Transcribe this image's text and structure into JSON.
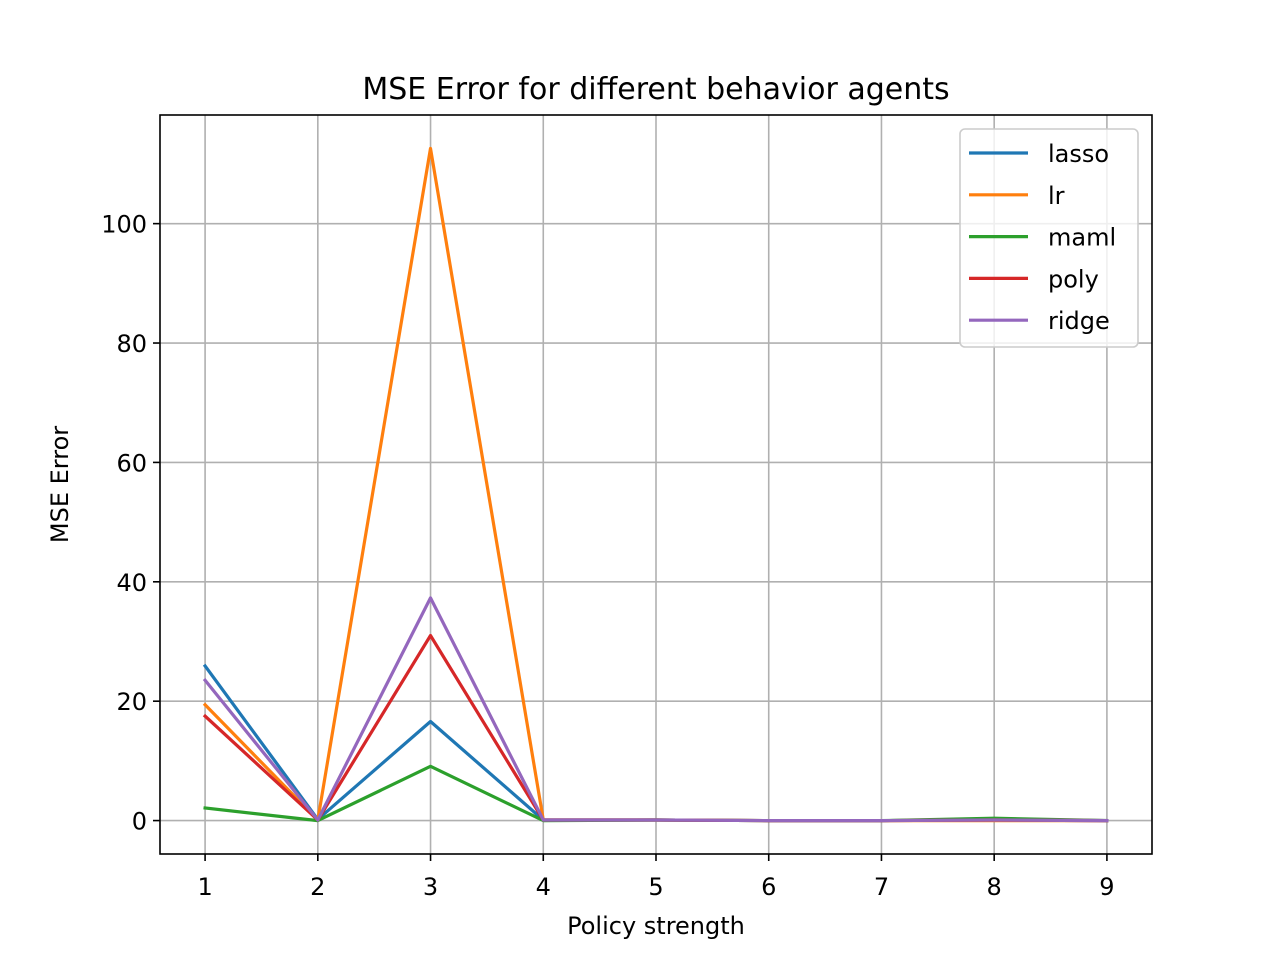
{
  "chart_data": {
    "type": "line",
    "title": "MSE Error for different behavior agents",
    "xlabel": "Policy strength",
    "ylabel": "MSE Error",
    "x": [
      1,
      2,
      3,
      4,
      5,
      6,
      7,
      8,
      9
    ],
    "xlim": [
      0.6,
      9.4
    ],
    "ylim": [
      -5.6,
      118.2
    ],
    "xticks": [
      1,
      2,
      3,
      4,
      5,
      6,
      7,
      8,
      9
    ],
    "yticks": [
      0,
      20,
      40,
      60,
      80,
      100
    ],
    "grid": true,
    "legend_position": "top-right",
    "series": [
      {
        "name": "lasso",
        "color": "#1f77b4",
        "values": [
          25.9,
          0.2,
          16.6,
          0.1,
          0.1,
          0.0,
          0.0,
          0.1,
          0.0
        ]
      },
      {
        "name": "lr",
        "color": "#ff7f0e",
        "values": [
          19.4,
          0.1,
          112.6,
          0.1,
          0.1,
          0.0,
          0.0,
          0.0,
          0.0
        ]
      },
      {
        "name": "maml",
        "color": "#2ca02c",
        "values": [
          2.1,
          0.0,
          9.1,
          0.0,
          0.1,
          0.0,
          0.0,
          0.4,
          0.0
        ]
      },
      {
        "name": "poly",
        "color": "#d62728",
        "values": [
          17.5,
          0.1,
          31.0,
          0.1,
          0.1,
          0.0,
          0.0,
          0.1,
          0.0
        ]
      },
      {
        "name": "ridge",
        "color": "#9467bd",
        "values": [
          23.5,
          0.1,
          37.3,
          0.1,
          0.1,
          0.0,
          0.0,
          0.1,
          0.0
        ]
      }
    ]
  }
}
